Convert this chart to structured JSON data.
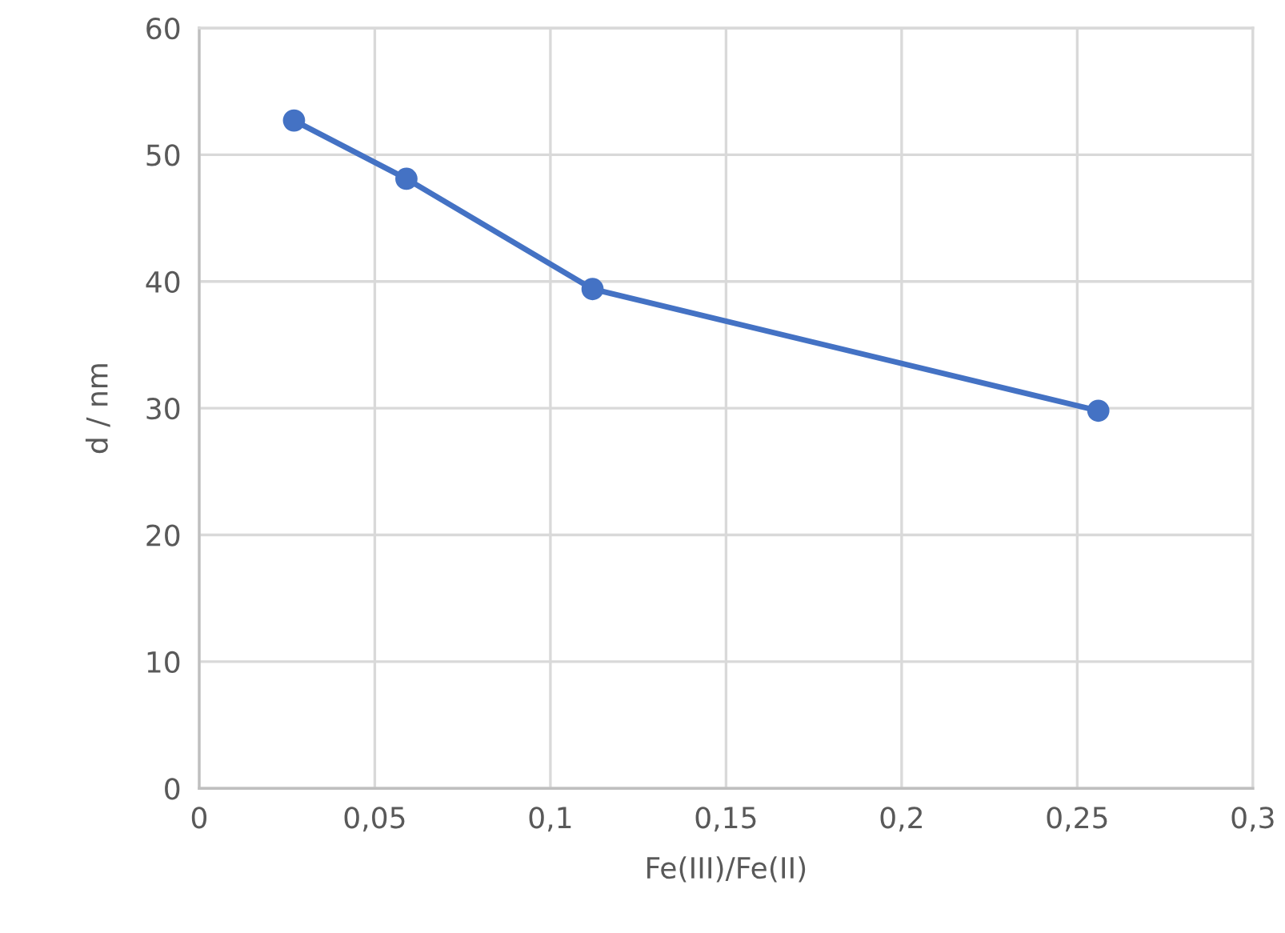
{
  "chart_data": {
    "type": "line",
    "xlabel": "Fe(III)/Fe(II)",
    "ylabel": "d / nm",
    "x": [
      0.027,
      0.059,
      0.112,
      0.256
    ],
    "series": [
      {
        "color": "#4472c4",
        "values": [
          52.7,
          48.1,
          39.4,
          29.8
        ]
      }
    ],
    "xlim": [
      0,
      0.3
    ],
    "xticks": [
      0,
      {
        "value": 0.05,
        "label": "0,05"
      },
      {
        "value": 0.1,
        "label": "0,1"
      },
      {
        "value": 0.15,
        "label": "0,15"
      },
      {
        "value": 0.2,
        "label": "0,2"
      },
      {
        "value": 0.25,
        "label": "0,25"
      },
      {
        "value": 0.3,
        "label": "0,3"
      }
    ],
    "ylim": [
      0,
      60
    ],
    "yticks": [
      0,
      10,
      20,
      30,
      40,
      50,
      60
    ],
    "grid": true,
    "marker": "circle",
    "line_style": "solid"
  }
}
